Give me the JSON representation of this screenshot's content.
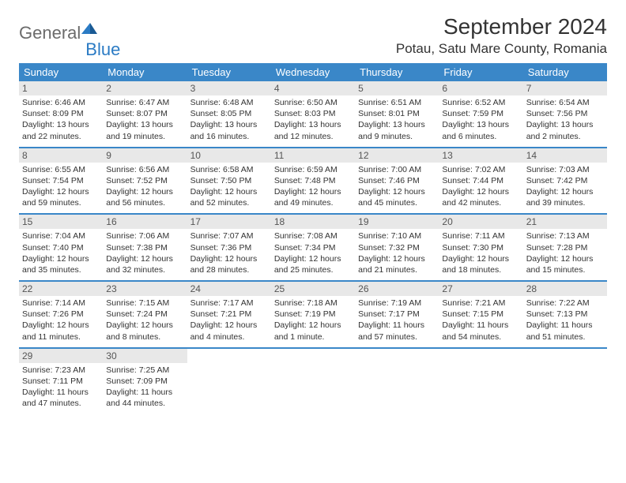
{
  "logo": {
    "text1": "General",
    "text2": "Blue"
  },
  "title": "September 2024",
  "location": "Potau, Satu Mare County, Romania",
  "colors": {
    "header_bg": "#3a87c8",
    "daynum_bg": "#e8e8e8",
    "logo_gray": "#6b6b6b",
    "logo_blue": "#2b7bc4",
    "text": "#333333"
  },
  "weekdays": [
    "Sunday",
    "Monday",
    "Tuesday",
    "Wednesday",
    "Thursday",
    "Friday",
    "Saturday"
  ],
  "weeks": [
    [
      {
        "n": "1",
        "sr": "6:46 AM",
        "ss": "8:09 PM",
        "dl": "13 hours and 22 minutes."
      },
      {
        "n": "2",
        "sr": "6:47 AM",
        "ss": "8:07 PM",
        "dl": "13 hours and 19 minutes."
      },
      {
        "n": "3",
        "sr": "6:48 AM",
        "ss": "8:05 PM",
        "dl": "13 hours and 16 minutes."
      },
      {
        "n": "4",
        "sr": "6:50 AM",
        "ss": "8:03 PM",
        "dl": "13 hours and 12 minutes."
      },
      {
        "n": "5",
        "sr": "6:51 AM",
        "ss": "8:01 PM",
        "dl": "13 hours and 9 minutes."
      },
      {
        "n": "6",
        "sr": "6:52 AM",
        "ss": "7:59 PM",
        "dl": "13 hours and 6 minutes."
      },
      {
        "n": "7",
        "sr": "6:54 AM",
        "ss": "7:56 PM",
        "dl": "13 hours and 2 minutes."
      }
    ],
    [
      {
        "n": "8",
        "sr": "6:55 AM",
        "ss": "7:54 PM",
        "dl": "12 hours and 59 minutes."
      },
      {
        "n": "9",
        "sr": "6:56 AM",
        "ss": "7:52 PM",
        "dl": "12 hours and 56 minutes."
      },
      {
        "n": "10",
        "sr": "6:58 AM",
        "ss": "7:50 PM",
        "dl": "12 hours and 52 minutes."
      },
      {
        "n": "11",
        "sr": "6:59 AM",
        "ss": "7:48 PM",
        "dl": "12 hours and 49 minutes."
      },
      {
        "n": "12",
        "sr": "7:00 AM",
        "ss": "7:46 PM",
        "dl": "12 hours and 45 minutes."
      },
      {
        "n": "13",
        "sr": "7:02 AM",
        "ss": "7:44 PM",
        "dl": "12 hours and 42 minutes."
      },
      {
        "n": "14",
        "sr": "7:03 AM",
        "ss": "7:42 PM",
        "dl": "12 hours and 39 minutes."
      }
    ],
    [
      {
        "n": "15",
        "sr": "7:04 AM",
        "ss": "7:40 PM",
        "dl": "12 hours and 35 minutes."
      },
      {
        "n": "16",
        "sr": "7:06 AM",
        "ss": "7:38 PM",
        "dl": "12 hours and 32 minutes."
      },
      {
        "n": "17",
        "sr": "7:07 AM",
        "ss": "7:36 PM",
        "dl": "12 hours and 28 minutes."
      },
      {
        "n": "18",
        "sr": "7:08 AM",
        "ss": "7:34 PM",
        "dl": "12 hours and 25 minutes."
      },
      {
        "n": "19",
        "sr": "7:10 AM",
        "ss": "7:32 PM",
        "dl": "12 hours and 21 minutes."
      },
      {
        "n": "20",
        "sr": "7:11 AM",
        "ss": "7:30 PM",
        "dl": "12 hours and 18 minutes."
      },
      {
        "n": "21",
        "sr": "7:13 AM",
        "ss": "7:28 PM",
        "dl": "12 hours and 15 minutes."
      }
    ],
    [
      {
        "n": "22",
        "sr": "7:14 AM",
        "ss": "7:26 PM",
        "dl": "12 hours and 11 minutes."
      },
      {
        "n": "23",
        "sr": "7:15 AM",
        "ss": "7:24 PM",
        "dl": "12 hours and 8 minutes."
      },
      {
        "n": "24",
        "sr": "7:17 AM",
        "ss": "7:21 PM",
        "dl": "12 hours and 4 minutes."
      },
      {
        "n": "25",
        "sr": "7:18 AM",
        "ss": "7:19 PM",
        "dl": "12 hours and 1 minute."
      },
      {
        "n": "26",
        "sr": "7:19 AM",
        "ss": "7:17 PM",
        "dl": "11 hours and 57 minutes."
      },
      {
        "n": "27",
        "sr": "7:21 AM",
        "ss": "7:15 PM",
        "dl": "11 hours and 54 minutes."
      },
      {
        "n": "28",
        "sr": "7:22 AM",
        "ss": "7:13 PM",
        "dl": "11 hours and 51 minutes."
      }
    ],
    [
      {
        "n": "29",
        "sr": "7:23 AM",
        "ss": "7:11 PM",
        "dl": "11 hours and 47 minutes."
      },
      {
        "n": "30",
        "sr": "7:25 AM",
        "ss": "7:09 PM",
        "dl": "11 hours and 44 minutes."
      },
      null,
      null,
      null,
      null,
      null
    ]
  ],
  "labels": {
    "sunrise": "Sunrise: ",
    "sunset": "Sunset: ",
    "daylight": "Daylight: "
  }
}
